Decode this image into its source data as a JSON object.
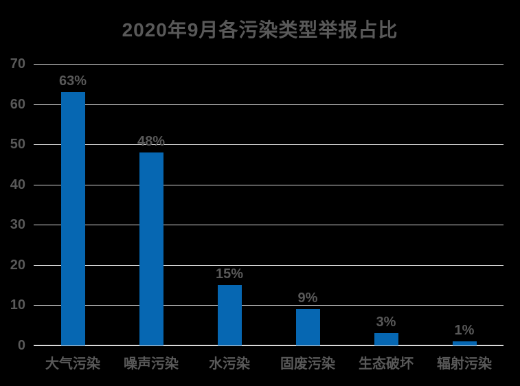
{
  "chart_data": {
    "type": "bar",
    "title": "2020年9月各污染类型举报占比",
    "categories": [
      "大气污染",
      "噪声污染",
      "水污染",
      "固废污染",
      "生态破坏",
      "辐射污染"
    ],
    "values": [
      63,
      48,
      15,
      9,
      3,
      1
    ],
    "data_labels": [
      "63%",
      "48%",
      "15%",
      "9%",
      "3%",
      "1%"
    ],
    "unit": "%",
    "y_ticks": [
      0,
      10,
      20,
      30,
      40,
      50,
      60,
      70
    ],
    "ylim": [
      0,
      70
    ],
    "xlabel": "",
    "ylabel": "",
    "grid": true,
    "legend": false,
    "colors": {
      "background": "#000000",
      "bar": "#0667b2",
      "text": "#595959",
      "gridline": "#d9d9d9"
    }
  }
}
